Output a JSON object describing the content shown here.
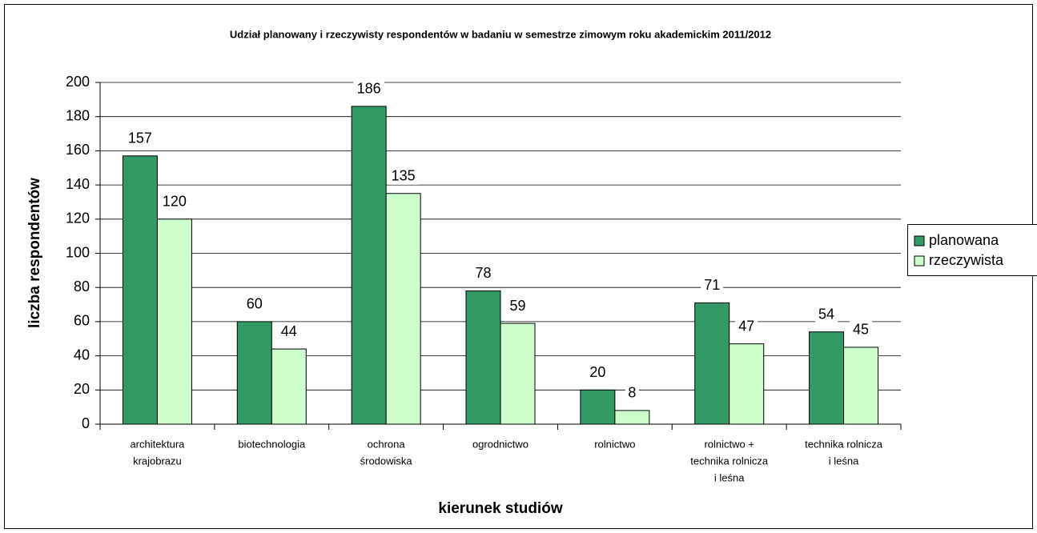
{
  "chart_data": {
    "type": "bar",
    "title": "Udział planowany i rzeczywisty respondentów w badaniu w semestrze zimowym roku akademickim 2011/2012",
    "x_label": "kierunek studiów",
    "y_label": "liczba respondentów",
    "categories": [
      [
        "architektura",
        "krajobrazu"
      ],
      [
        "biotechnologia"
      ],
      [
        "ochrona",
        "środowiska"
      ],
      [
        "ogrodnictwo"
      ],
      [
        "rolnictwo"
      ],
      [
        "rolnictwo +",
        "technika rolnicza",
        "i leśna"
      ],
      [
        "technika rolnicza",
        "i leśna"
      ]
    ],
    "series": [
      {
        "name": "planowana",
        "color": "#339966",
        "values": [
          157,
          60,
          186,
          78,
          20,
          71,
          54
        ]
      },
      {
        "name": "rzeczywista",
        "color": "#ccffcc",
        "values": [
          120,
          44,
          135,
          59,
          8,
          47,
          45
        ]
      }
    ],
    "ylim": [
      0,
      200
    ],
    "yticks": [
      0,
      20,
      40,
      60,
      80,
      100,
      120,
      140,
      160,
      180,
      200
    ],
    "grid": true,
    "legend": "right"
  }
}
